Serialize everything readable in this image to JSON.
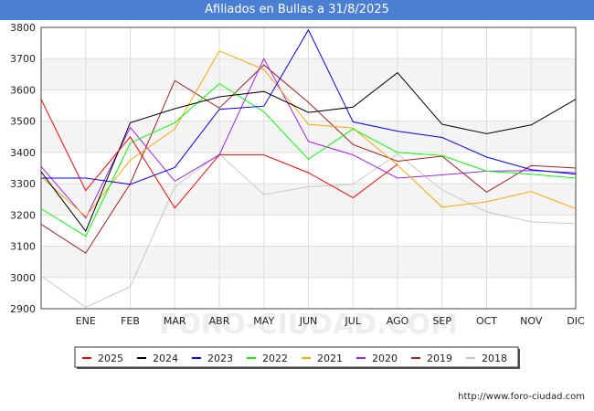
{
  "chart_data": {
    "type": "line",
    "title": "Afiliados en Bullas a 31/8/2025",
    "categories": [
      "",
      "ENE",
      "FEB",
      "MAR",
      "ABR",
      "MAY",
      "JUN",
      "JUL",
      "AGO",
      "SEP",
      "OCT",
      "NOV",
      "DIC"
    ],
    "yticks": [
      2900,
      3000,
      3100,
      3200,
      3300,
      3400,
      3500,
      3600,
      3700,
      3800
    ],
    "ylim": [
      2900,
      3800
    ],
    "watermark": "FORO-CIUDAD.COM",
    "source_url": "http://www.foro-ciudad.com",
    "series": [
      {
        "name": "2018",
        "color": "#c8c8c8",
        "values": [
          3005,
          2905,
          2970,
          3290,
          3395,
          3265,
          3290,
          3298,
          3395,
          3280,
          3210,
          3178,
          3172
        ]
      },
      {
        "name": "2019",
        "color": "#a02020",
        "values": [
          3170,
          3078,
          3300,
          3630,
          3542,
          3680,
          3560,
          3425,
          3372,
          3388,
          3273,
          3358,
          3350
        ]
      },
      {
        "name": "2020",
        "color": "#a020f0",
        "values": [
          3355,
          3190,
          3480,
          3308,
          3392,
          3700,
          3435,
          3392,
          3318,
          3328,
          3340,
          3342,
          3335
        ]
      },
      {
        "name": "2021",
        "color": "#ffa500",
        "values": [
          3322,
          3195,
          3375,
          3475,
          3725,
          3665,
          3490,
          3478,
          3360,
          3225,
          3242,
          3275,
          3220
        ]
      },
      {
        "name": "2022",
        "color": "#00ff00",
        "values": [
          3220,
          3132,
          3430,
          3495,
          3620,
          3530,
          3378,
          3475,
          3400,
          3390,
          3340,
          3330,
          3318
        ]
      },
      {
        "name": "2023",
        "color": "#0000ff",
        "values": [
          3318,
          3318,
          3298,
          3352,
          3538,
          3548,
          3792,
          3498,
          3468,
          3448,
          3385,
          3345,
          3330
        ]
      },
      {
        "name": "2024",
        "color": "#000000",
        "values": [
          3338,
          3148,
          3495,
          3540,
          3578,
          3595,
          3528,
          3545,
          3655,
          3490,
          3460,
          3488,
          3570
        ]
      },
      {
        "name": "2025",
        "color": "#ff0000",
        "values": [
          3570,
          3278,
          3450,
          3222,
          3392,
          3392,
          3335,
          3255,
          3362,
          null,
          null,
          null,
          null
        ]
      }
    ],
    "legend_order": [
      "2025",
      "2024",
      "2023",
      "2022",
      "2021",
      "2020",
      "2019",
      "2018"
    ]
  }
}
